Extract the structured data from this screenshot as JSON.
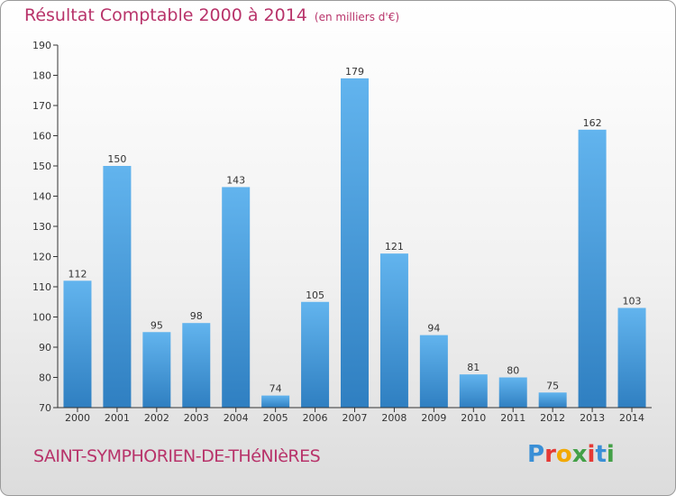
{
  "chart_data": {
    "type": "bar",
    "title": "Résultat Comptable 2000 à 2014",
    "subtitle": "(en milliers d'€)",
    "categories": [
      "2000",
      "2001",
      "2002",
      "2003",
      "2004",
      "2005",
      "2006",
      "2007",
      "2008",
      "2009",
      "2010",
      "2011",
      "2012",
      "2013",
      "2014"
    ],
    "values": [
      112,
      150,
      95,
      98,
      143,
      74,
      105,
      179,
      121,
      94,
      81,
      80,
      75,
      162,
      103
    ],
    "ylim": [
      70,
      190
    ],
    "yticks": [
      70,
      80,
      90,
      100,
      110,
      120,
      130,
      140,
      150,
      160,
      170,
      180,
      190
    ],
    "grid": false,
    "xlabel": "",
    "ylabel": ""
  },
  "commune": "SAINT-SYMPHORIEN-DE-THéNIèRES",
  "logo": {
    "letters": [
      "P",
      "r",
      "o",
      "x",
      "i",
      "t",
      "i"
    ],
    "colors": [
      "#3a8fd6",
      "#e53935",
      "#f2a900",
      "#43a047",
      "#e53935",
      "#3a8fd6",
      "#43a047"
    ]
  },
  "colors": {
    "title": "#b8336a",
    "bar_top": "#62b4ee",
    "bar_bottom": "#2f7fc1",
    "axis": "#333333"
  }
}
